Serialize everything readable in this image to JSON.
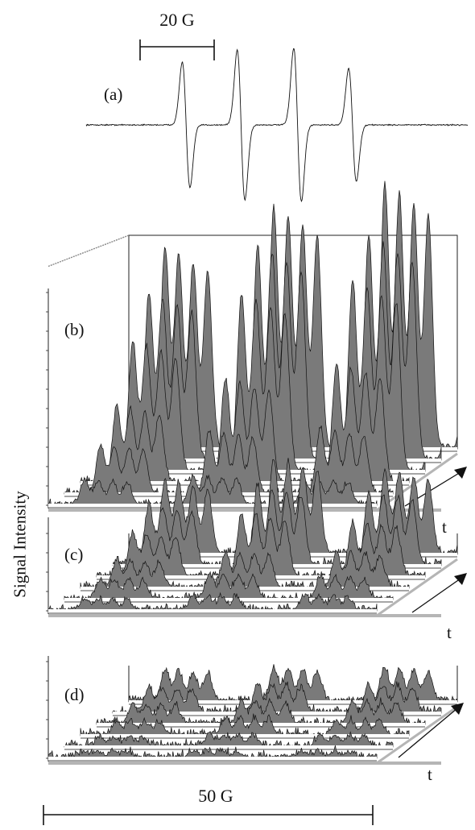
{
  "figure": {
    "scale_bar_top": "20 G",
    "scale_bar_bottom": "50 G",
    "ylabel": "Signal Intensity",
    "time_axis_label": "t"
  },
  "chart_data": [
    {
      "type": "line",
      "panel": "(a)",
      "title": "(a)",
      "xlabel": "",
      "ylabel": "",
      "scale_bar": "20 G",
      "x_span_G": 50,
      "lines": 4,
      "peak_positions_G": [
        13.1,
        20.3,
        27.7,
        34.9
      ],
      "relative_amplitudes": [
        1.0,
        1.19,
        1.22,
        0.9
      ],
      "grid": false,
      "legend": "none"
    },
    {
      "type": "area",
      "panel": "(b)",
      "title": "(b)",
      "xlabel": "",
      "ylabel": "Signal Intensity",
      "depth_axis": "t",
      "scale_bar": "50 G",
      "traces": 6,
      "line_groups": [
        {
          "name": "",
          "peak_heights": [
            0.09,
            0.18,
            0.28,
            0.48,
            0.62,
            0.75
          ]
        },
        {
          "name": "",
          "peak_heights": [
            0.1,
            0.23,
            0.38,
            0.66,
            0.8,
            0.9
          ]
        },
        {
          "name": "",
          "peak_heights": [
            0.09,
            0.24,
            0.44,
            0.71,
            0.84,
            0.99
          ]
        },
        {
          "name": "",
          "peak_heights": [
            0.05,
            0.13,
            0.21,
            0.42,
            0.58,
            0.65
          ]
        }
      ],
      "grid": false
    },
    {
      "type": "area",
      "panel": "(c)",
      "title": "(c)",
      "xlabel": "",
      "ylabel": "Signal Intensity",
      "depth_axis": "t",
      "traces": 6,
      "line_groups": [
        {
          "name": "",
          "peak_heights": [
            0.04,
            0.07,
            0.1,
            0.16,
            0.22,
            0.27
          ]
        },
        {
          "name": "",
          "peak_heights": [
            0.05,
            0.09,
            0.13,
            0.23,
            0.29,
            0.35
          ]
        },
        {
          "name": "",
          "peak_heights": [
            0.05,
            0.08,
            0.13,
            0.2,
            0.27,
            0.31
          ]
        },
        {
          "name": "",
          "peak_heights": [
            0.03,
            0.06,
            0.09,
            0.14,
            0.2,
            0.23
          ]
        }
      ],
      "grid": false
    },
    {
      "type": "area",
      "panel": "(d)",
      "title": "(d)",
      "xlabel": "",
      "ylabel": "Signal Intensity",
      "depth_axis": "t",
      "traces": 6,
      "line_groups": [
        {
          "name": "",
          "peak_heights": [
            0.02,
            0.03,
            0.05,
            0.07,
            0.09,
            0.11
          ]
        },
        {
          "name": "",
          "peak_heights": [
            0.02,
            0.04,
            0.06,
            0.08,
            0.1,
            0.12
          ]
        },
        {
          "name": "",
          "peak_heights": [
            0.02,
            0.04,
            0.05,
            0.08,
            0.1,
            0.12
          ]
        },
        {
          "name": "",
          "peak_heights": [
            0.02,
            0.03,
            0.04,
            0.06,
            0.08,
            0.1
          ]
        }
      ],
      "grid": false
    }
  ]
}
